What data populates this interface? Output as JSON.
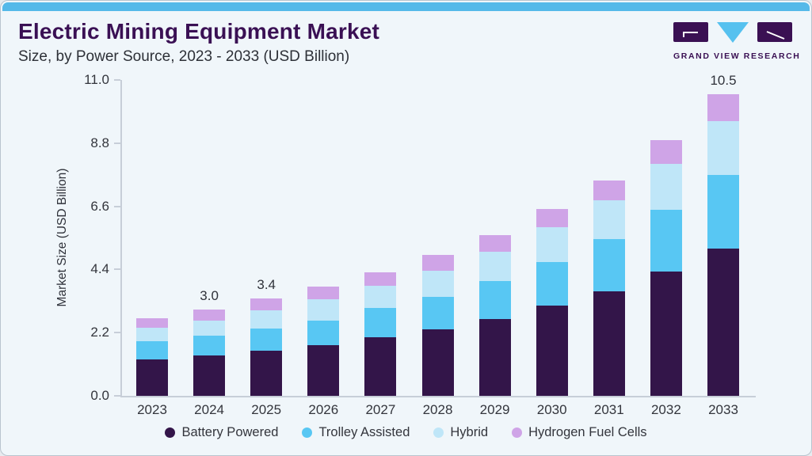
{
  "header": {
    "title": "Electric Mining Equipment Market",
    "subtitle": "Size, by Power Source, 2023 - 2033 (USD Billion)"
  },
  "logo": {
    "text": "GRAND VIEW RESEARCH",
    "block_color": "#3a1053",
    "triangle_color": "#56c1ef"
  },
  "colors": {
    "accent_top_bar": "#55b9e9",
    "card_background": "#f0f6fa",
    "axis_line": "#c7ced8",
    "title_text": "#3a1054",
    "body_text": "#33353c"
  },
  "chart_data": {
    "type": "bar",
    "stacked": true,
    "ylabel": "Market Size (USD Billion)",
    "xlabel": "",
    "ylim": [
      0,
      11
    ],
    "y_ticks": [
      "0.0",
      "2.2",
      "4.4",
      "6.6",
      "8.8",
      "11.0"
    ],
    "grid": false,
    "legend_position": "bottom",
    "categories": [
      "2023",
      "2024",
      "2025",
      "2026",
      "2027",
      "2028",
      "2029",
      "2030",
      "2031",
      "2032",
      "2033"
    ],
    "series": [
      {
        "name": "Battery Powered",
        "color": "#331549",
        "values": [
          1.27,
          1.4,
          1.57,
          1.76,
          2.05,
          2.33,
          2.67,
          3.13,
          3.64,
          4.33,
          5.13
        ]
      },
      {
        "name": "Trolley Assisted",
        "color": "#58c7f3",
        "values": [
          0.62,
          0.69,
          0.77,
          0.86,
          1.0,
          1.12,
          1.33,
          1.54,
          1.83,
          2.15,
          2.56
        ]
      },
      {
        "name": "Hybrid",
        "color": "#bfe6f8",
        "values": [
          0.47,
          0.53,
          0.64,
          0.74,
          0.79,
          0.92,
          1.01,
          1.2,
          1.33,
          1.6,
          1.88
        ]
      },
      {
        "name": "Hydrogen Fuel Cells",
        "color": "#cfa4e7",
        "values": [
          0.34,
          0.38,
          0.42,
          0.44,
          0.46,
          0.53,
          0.59,
          0.63,
          0.7,
          0.82,
          0.93
        ]
      }
    ],
    "totals": [
      2.7,
      3.0,
      3.4,
      3.8,
      4.3,
      4.9,
      5.6,
      6.5,
      7.5,
      8.9,
      10.5
    ],
    "bar_labels": [
      "",
      "3.0",
      "3.4",
      "",
      "",
      "",
      "",
      "",
      "",
      "",
      "10.5"
    ]
  }
}
